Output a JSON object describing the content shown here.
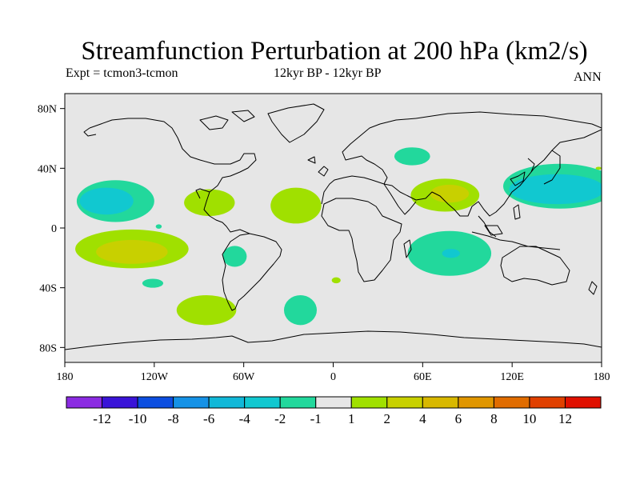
{
  "title": "Streamfunction Perturbation at 200 hPa (km2/s)",
  "subtitle_left": "Expt = tcmon3-tcmon",
  "subtitle_center": "12kyr BP - 12kyr BP",
  "subtitle_right": "ANN",
  "map": {
    "projection": "cylindrical-equidistant",
    "lon_range": [
      -180,
      180
    ],
    "lat_range": [
      -90,
      90
    ],
    "lat_ticks": [
      {
        "value": 80,
        "label": "80N"
      },
      {
        "value": 40,
        "label": "40N"
      },
      {
        "value": 0,
        "label": "0"
      },
      {
        "value": -40,
        "label": "40S"
      },
      {
        "value": -80,
        "label": "80S"
      }
    ],
    "lon_ticks": [
      {
        "value": -180,
        "label": "180"
      },
      {
        "value": -120,
        "label": "120W"
      },
      {
        "value": -60,
        "label": "60W"
      },
      {
        "value": 0,
        "label": "0"
      },
      {
        "value": 60,
        "label": "60E"
      },
      {
        "value": 120,
        "label": "120E"
      },
      {
        "value": 180,
        "label": "180"
      }
    ],
    "background_color": "#e6e6e6",
    "coastline_color": "#000000",
    "anomaly_regions": [
      {
        "lon": -146,
        "lat": 18,
        "rlon": 26,
        "rlat": 14,
        "value": -1.5,
        "color": "#22d89c"
      },
      {
        "lon": -152,
        "lat": 18,
        "rlon": 18,
        "rlat": 9,
        "value": -3,
        "color": "#11c8d0"
      },
      {
        "lon": -135,
        "lat": -14,
        "rlon": 38,
        "rlat": 13,
        "value": 1.5,
        "color": "#a0e000"
      },
      {
        "lon": -135,
        "lat": -16,
        "rlon": 24,
        "rlat": 8,
        "value": 3,
        "color": "#c8d000"
      },
      {
        "lon": -121,
        "lat": -37,
        "rlon": 7,
        "rlat": 3,
        "value": -1.5,
        "color": "#22d89c"
      },
      {
        "lon": -117,
        "lat": 1,
        "rlon": 2,
        "rlat": 1.5,
        "value": -1.5,
        "color": "#22d89c"
      },
      {
        "lon": -83,
        "lat": 17,
        "rlon": 17,
        "rlat": 9,
        "value": 1.5,
        "color": "#a0e000"
      },
      {
        "lon": -66,
        "lat": -19,
        "rlon": 8,
        "rlat": 7,
        "value": -1.5,
        "color": "#22d89c"
      },
      {
        "lon": -85,
        "lat": -55,
        "rlon": 20,
        "rlat": 10,
        "value": 1.5,
        "color": "#a0e000"
      },
      {
        "lon": -25,
        "lat": 15,
        "rlon": 17,
        "rlat": 12,
        "value": 1.5,
        "color": "#a0e000"
      },
      {
        "lon": -22,
        "lat": -55,
        "rlon": 11,
        "rlat": 10,
        "value": -1.5,
        "color": "#22d89c"
      },
      {
        "lon": 2,
        "lat": -35,
        "rlon": 3,
        "rlat": 2,
        "value": 1.5,
        "color": "#a0e000"
      },
      {
        "lon": 53,
        "lat": 48,
        "rlon": 12,
        "rlat": 6,
        "value": -1.5,
        "color": "#22d89c"
      },
      {
        "lon": 75,
        "lat": 22,
        "rlon": 23,
        "rlat": 11,
        "value": 1.5,
        "color": "#a0e000"
      },
      {
        "lon": 78,
        "lat": 23,
        "rlon": 13,
        "rlat": 6,
        "value": 3,
        "color": "#c8d000"
      },
      {
        "lon": 78,
        "lat": -17,
        "rlon": 28,
        "rlat": 15,
        "value": -1.5,
        "color": "#22d89c"
      },
      {
        "lon": 79,
        "lat": -17,
        "rlon": 6,
        "rlat": 3,
        "value": -3,
        "color": "#11c8d0"
      },
      {
        "lon": 152,
        "lat": 28,
        "rlon": 38,
        "rlat": 15,
        "value": -1.5,
        "color": "#22d89c"
      },
      {
        "lon": 150,
        "lat": 26,
        "rlon": 32,
        "rlat": 10,
        "value": -3,
        "color": "#11c8d0"
      },
      {
        "lon": 178,
        "lat": 40,
        "rlon": 2,
        "rlat": 1,
        "value": 1.5,
        "color": "#a0e000"
      }
    ]
  },
  "colorbar": {
    "colors": [
      "#8b2be2",
      "#3a14d8",
      "#0c4ee0",
      "#1592e6",
      "#11b8d8",
      "#11c8d0",
      "#22d89c",
      "#e6e6e6",
      "#a0e000",
      "#c8d000",
      "#d8b800",
      "#e09600",
      "#e06c00",
      "#e04000",
      "#e01000"
    ],
    "labels": [
      "-12",
      "-10",
      "-8",
      "-6",
      "-4",
      "-2",
      "-1",
      "1",
      "2",
      "4",
      "6",
      "8",
      "10",
      "12"
    ]
  }
}
